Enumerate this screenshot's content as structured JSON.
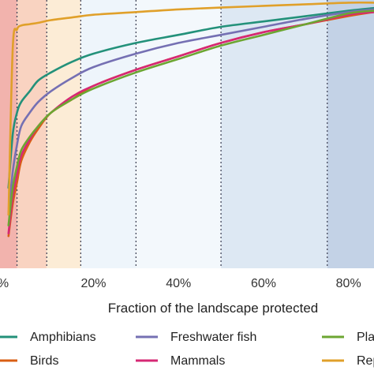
{
  "chart_data": {
    "type": "line",
    "xlabel": "Fraction of the landscape protected",
    "ylabel": "",
    "title": "",
    "xlim": [
      -2,
      86
    ],
    "ylim": [
      0,
      1
    ],
    "x_ticks": [
      0,
      20,
      40,
      60,
      80
    ],
    "x_tick_labels": [
      "%",
      "20%",
      "40%",
      "60%",
      "80%"
    ],
    "grid": false,
    "bands": [
      {
        "from": -2,
        "to": 2,
        "color": "#f2b3ad"
      },
      {
        "from": 2,
        "to": 9,
        "color": "#f9d3c1"
      },
      {
        "from": 9,
        "to": 17,
        "color": "#fcecd6"
      },
      {
        "from": 17,
        "to": 30,
        "color": "#eef5fb"
      },
      {
        "from": 30,
        "to": 50,
        "color": "#f3f8fc"
      },
      {
        "from": 50,
        "to": 75,
        "color": "#dde8f3"
      },
      {
        "from": 75,
        "to": 86,
        "color": "#c3d2e6"
      }
    ],
    "dotted_lines_x": [
      2,
      9,
      17,
      30,
      50,
      75
    ],
    "x": [
      0,
      1,
      2,
      3,
      5,
      7,
      10,
      15,
      20,
      30,
      40,
      50,
      60,
      70,
      80,
      86
    ],
    "series": [
      {
        "name": "Amphibians",
        "color": "#23917a",
        "values": [
          0.3,
          0.5,
          0.58,
          0.62,
          0.66,
          0.7,
          0.73,
          0.77,
          0.8,
          0.84,
          0.87,
          0.9,
          0.92,
          0.94,
          0.96,
          0.97
        ]
      },
      {
        "name": "Birds",
        "color": "#d95f14",
        "values": [
          0.12,
          0.24,
          0.32,
          0.4,
          0.47,
          0.52,
          0.58,
          0.63,
          0.68,
          0.74,
          0.79,
          0.84,
          0.88,
          0.91,
          0.94,
          0.955
        ]
      },
      {
        "name": "Freshwater fish",
        "color": "#7570b3",
        "values": [
          0.2,
          0.36,
          0.46,
          0.53,
          0.58,
          0.62,
          0.66,
          0.71,
          0.75,
          0.8,
          0.84,
          0.87,
          0.9,
          0.93,
          0.955,
          0.965
        ]
      },
      {
        "name": "Mammals",
        "color": "#d62874",
        "values": [
          0.13,
          0.27,
          0.35,
          0.42,
          0.48,
          0.53,
          0.58,
          0.64,
          0.68,
          0.74,
          0.79,
          0.84,
          0.88,
          0.91,
          0.945,
          0.955
        ]
      },
      {
        "name": "Pla",
        "color": "#6ca632",
        "values": [
          0.16,
          0.3,
          0.38,
          0.44,
          0.49,
          0.53,
          0.58,
          0.63,
          0.67,
          0.73,
          0.78,
          0.83,
          0.87,
          0.91,
          0.95,
          0.96
        ]
      },
      {
        "name": "Rep",
        "color": "#e0a02a",
        "values": [
          0.2,
          0.82,
          0.89,
          0.905,
          0.91,
          0.915,
          0.925,
          0.935,
          0.945,
          0.955,
          0.965,
          0.972,
          0.978,
          0.984,
          0.99,
          0.99
        ]
      }
    ]
  },
  "legend": {
    "items": [
      {
        "label": "Amphibians",
        "color": "#23917a"
      },
      {
        "label": "Freshwater fish",
        "color": "#7570b3"
      },
      {
        "label": "Pla",
        "color": "#6ca632"
      },
      {
        "label": "Birds",
        "color": "#d95f14"
      },
      {
        "label": "Mammals",
        "color": "#d62874"
      },
      {
        "label": "Rep",
        "color": "#e0a02a"
      }
    ]
  }
}
